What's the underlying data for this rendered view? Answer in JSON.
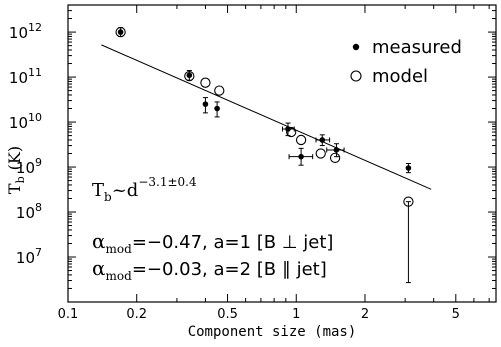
{
  "chart_data": {
    "type": "scatter",
    "xlabel": "Component size (mas)",
    "ylabel_main": "T",
    "ylabel_sub": "b",
    "ylabel_unit": "(K)",
    "x_scale": "log",
    "y_scale": "log",
    "xlim": [
      0.1,
      7.5
    ],
    "ylim": [
      1000000.0,
      4000000000000.0
    ],
    "x_ticks": [
      {
        "value": 0.1,
        "label": "0.1"
      },
      {
        "value": 0.2,
        "label": "0.2"
      },
      {
        "value": 0.5,
        "label": "0.5"
      },
      {
        "value": 1,
        "label": "1"
      },
      {
        "value": 2,
        "label": "2"
      },
      {
        "value": 5,
        "label": "5"
      }
    ],
    "y_ticks": [
      {
        "exp": 7,
        "label_base": "10",
        "label_exp": "7"
      },
      {
        "exp": 8,
        "label_base": "10",
        "label_exp": "8"
      },
      {
        "exp": 9,
        "label_base": "10",
        "label_exp": "9"
      },
      {
        "exp": 10,
        "label_base": "10",
        "label_exp": "10"
      },
      {
        "exp": 11,
        "label_base": "10",
        "label_exp": "11"
      },
      {
        "exp": 12,
        "label_base": "10",
        "label_exp": "12"
      }
    ],
    "legend": {
      "position": "top-right",
      "items": [
        {
          "label": "measured",
          "marker": "filled-dot"
        },
        {
          "label": "model",
          "marker": "open-circle"
        }
      ]
    },
    "series": [
      {
        "name": "measured",
        "marker": "filled-dot",
        "points": [
          {
            "x": 0.17,
            "y": 1000000000000.0,
            "yerr_lo": 800000000000.0,
            "yerr_hi": 1250000000000.0
          },
          {
            "x": 0.34,
            "y": 110000000000.0,
            "yerr_lo": 85000000000.0,
            "yerr_hi": 140000000000.0
          },
          {
            "x": 0.4,
            "y": 25000000000.0,
            "yerr_lo": 16000000000.0,
            "yerr_hi": 35000000000.0
          },
          {
            "x": 0.45,
            "y": 20000000000.0,
            "yerr_lo": 13000000000.0,
            "yerr_hi": 28000000000.0
          },
          {
            "x": 0.92,
            "y": 7000000000.0,
            "yerr_lo": 5000000000.0,
            "yerr_hi": 9500000000.0,
            "xerr_lo": 0.87,
            "xerr_hi": 0.98
          },
          {
            "x": 1.05,
            "y": 1700000000.0,
            "yerr_lo": 1100000000.0,
            "yerr_hi": 2600000000.0,
            "xerr_lo": 0.93,
            "xerr_hi": 1.18
          },
          {
            "x": 1.3,
            "y": 4000000000.0,
            "yerr_lo": 3000000000.0,
            "yerr_hi": 5200000000.0,
            "xerr_lo": 1.22,
            "xerr_hi": 1.4
          },
          {
            "x": 1.5,
            "y": 2400000000.0,
            "yerr_lo": 1700000000.0,
            "yerr_hi": 3300000000.0,
            "xerr_lo": 1.36,
            "xerr_hi": 1.62
          },
          {
            "x": 3.1,
            "y": 950000000.0,
            "yerr_lo": 750000000.0,
            "yerr_hi": 1200000000.0
          }
        ]
      },
      {
        "name": "model",
        "marker": "open-circle",
        "points": [
          {
            "x": 0.17,
            "y": 1000000000000.0
          },
          {
            "x": 0.34,
            "y": 105000000000.0
          },
          {
            "x": 0.4,
            "y": 75000000000.0
          },
          {
            "x": 0.46,
            "y": 50000000000.0
          },
          {
            "x": 0.95,
            "y": 6000000000.0
          },
          {
            "x": 1.05,
            "y": 4000000000.0
          },
          {
            "x": 1.28,
            "y": 2000000000.0
          },
          {
            "x": 1.48,
            "y": 1600000000.0
          },
          {
            "x": 3.1,
            "y": 170000000.0,
            "yerr_lo": 2700000.0,
            "yerr_hi": 170000000.0
          }
        ]
      }
    ],
    "fit_line": {
      "x1": 0.14,
      "y1": 520000000000.0,
      "x2": 3.9,
      "y2": 320000000.0
    },
    "annotations": {
      "fit_base": "T",
      "fit_sub": "b",
      "fit_tilde": "~d",
      "fit_exponent": "−3.1±0.4",
      "line1_alpha": "α",
      "line1_sub": "mod",
      "line1_text": "=−0.47,  a=1  [B ⊥ jet]",
      "line2_alpha": "α",
      "line2_sub": "mod",
      "line2_text": "=−0.03,  a=2  [B ∥ jet]"
    }
  }
}
